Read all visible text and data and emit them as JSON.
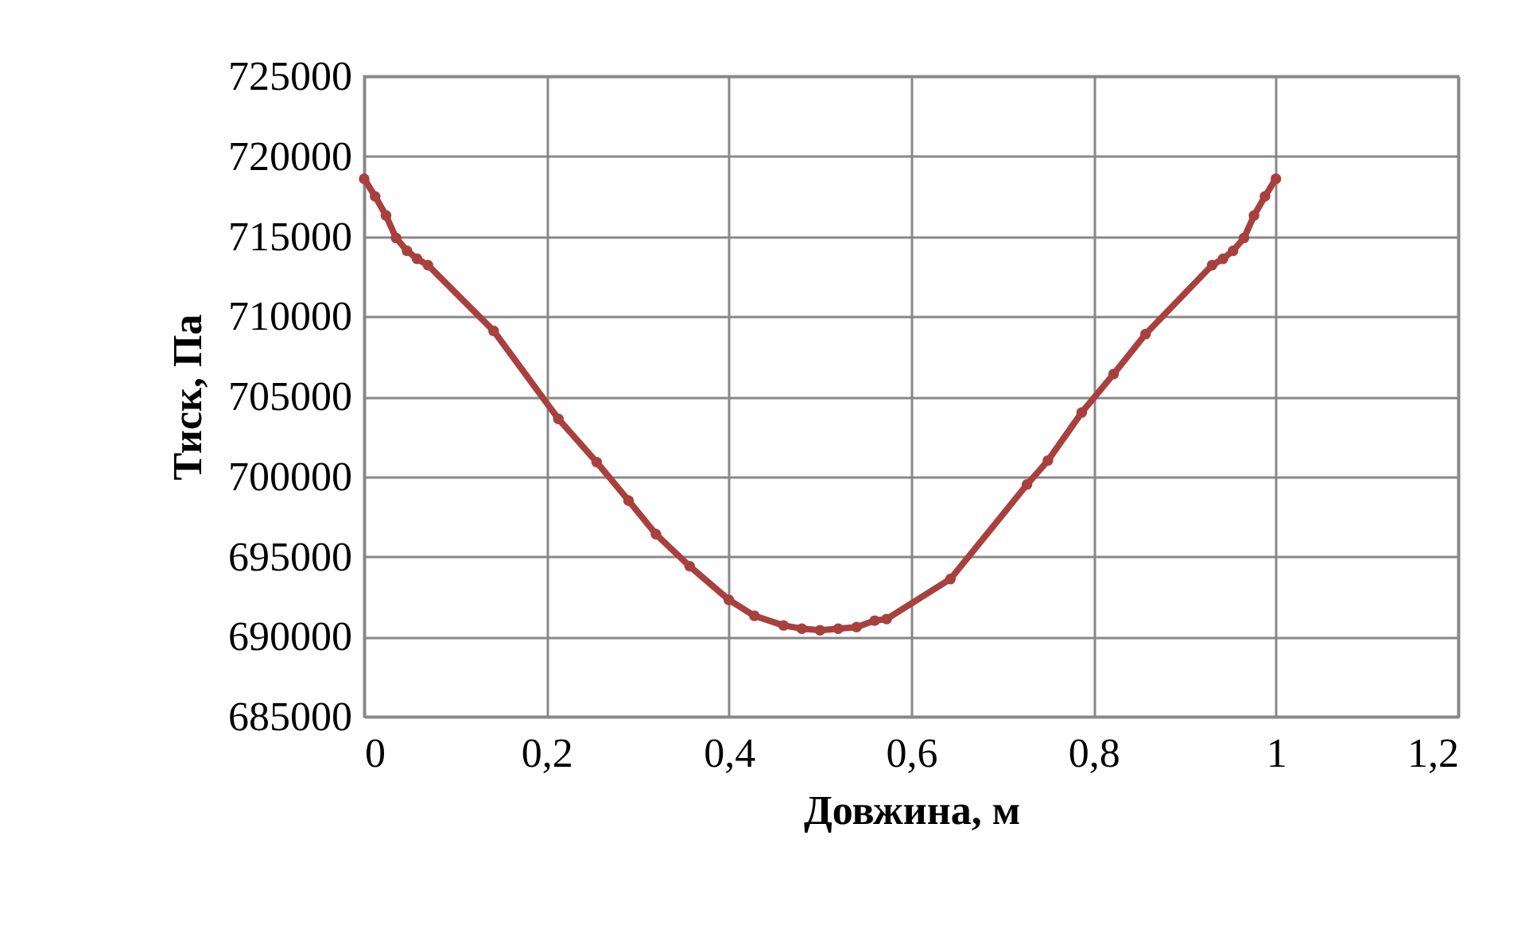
{
  "chart_data": {
    "type": "line",
    "xlabel": "Довжина, м",
    "ylabel": "Тиск, Па",
    "x": [
      0,
      0.012,
      0.024,
      0.035,
      0.047,
      0.058,
      0.07,
      0.142,
      0.213,
      0.255,
      0.29,
      0.32,
      0.357,
      0.4,
      0.428,
      0.46,
      0.48,
      0.5,
      0.52,
      0.54,
      0.56,
      0.573,
      0.643,
      0.727,
      0.75,
      0.787,
      0.822,
      0.857,
      0.93,
      0.942,
      0.953,
      0.965,
      0.976,
      0.988,
      1
    ],
    "series": [
      {
        "color": "#a8403e",
        "values": [
          718600,
          717500,
          716300,
          714900,
          714100,
          713600,
          713200,
          709100,
          703600,
          700900,
          698500,
          696400,
          694400,
          692300,
          691300,
          690700,
          690500,
          690400,
          690500,
          690600,
          691000,
          691100,
          693600,
          699500,
          701000,
          704000,
          706400,
          708900,
          713200,
          713600,
          714100,
          714900,
          716300,
          717500,
          718600
        ]
      }
    ],
    "xlim": [
      0,
      1.2
    ],
    "xticks": [
      {
        "value": 0,
        "label": "0"
      },
      {
        "value": 0.2,
        "label": "0,2"
      },
      {
        "value": 0.4,
        "label": "0,4"
      },
      {
        "value": 0.6,
        "label": "0,6"
      },
      {
        "value": 0.8,
        "label": "0,8"
      },
      {
        "value": 1,
        "label": "1"
      },
      {
        "value": 1.2,
        "label": "1,2"
      }
    ],
    "ylim": [
      685000,
      725000
    ],
    "yticks": [
      685000,
      690000,
      695000,
      700000,
      705000,
      710000,
      715000,
      720000,
      725000
    ],
    "grid": true,
    "marker": "circle",
    "line_style": "solid"
  }
}
